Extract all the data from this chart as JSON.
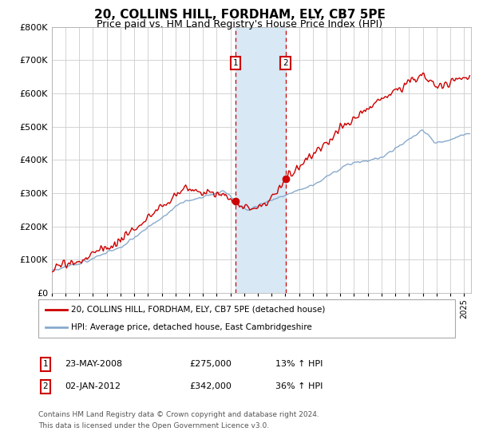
{
  "title": "20, COLLINS HILL, FORDHAM, ELY, CB7 5PE",
  "subtitle": "Price paid vs. HM Land Registry's House Price Index (HPI)",
  "footer": "Contains HM Land Registry data © Crown copyright and database right 2024.\nThis data is licensed under the Open Government Licence v3.0.",
  "legend_line1": "20, COLLINS HILL, FORDHAM, ELY, CB7 5PE (detached house)",
  "legend_line2": "HPI: Average price, detached house, East Cambridgeshire",
  "transaction1": {
    "label": "1",
    "date": "23-MAY-2008",
    "price": "£275,000",
    "pct": "13% ↑ HPI"
  },
  "transaction2": {
    "label": "2",
    "date": "02-JAN-2012",
    "price": "£342,000",
    "pct": "36% ↑ HPI"
  },
  "ylim": [
    0,
    800000
  ],
  "yticks": [
    0,
    100000,
    200000,
    300000,
    400000,
    500000,
    600000,
    700000,
    800000
  ],
  "xlim_start": 1995.0,
  "xlim_end": 2025.5,
  "red_line_color": "#cc0000",
  "blue_line_color": "#88aacc",
  "shade_color": "#d8e8f4",
  "marker1_x": 2008.38,
  "marker2_x": 2012.01,
  "background_color": "#ffffff",
  "grid_color": "#cccccc",
  "title_fontsize": 11,
  "subtitle_fontsize": 9
}
